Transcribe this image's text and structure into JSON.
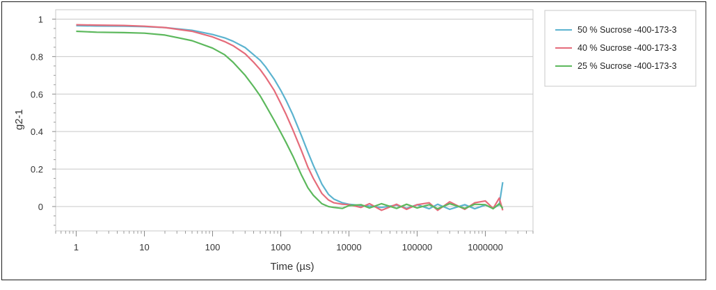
{
  "chart_data": {
    "type": "line",
    "xlabel": "Time (µs)",
    "ylabel": "g2-1",
    "x_scale": "log",
    "xlim": [
      0.5,
      5000000
    ],
    "ylim": [
      -0.13,
      1.05
    ],
    "x_ticks": [
      "1",
      "10",
      "100",
      "1000",
      "10000",
      "100000",
      "1000000"
    ],
    "y_ticks": [
      "0",
      "0.2",
      "0.4",
      "0.6",
      "0.8",
      "1"
    ],
    "grid": "horizontal",
    "legend_position": "right",
    "series": [
      {
        "name": "50 % Sucrose -400-173-3",
        "color": "#5bb3cf",
        "x": [
          1,
          2,
          5,
          10,
          20,
          50,
          100,
          150,
          200,
          300,
          400,
          500,
          600,
          800,
          1000,
          1200,
          1500,
          2000,
          2500,
          3000,
          4000,
          5000,
          6000,
          8000,
          10000,
          15000,
          20000,
          30000,
          50000,
          70000,
          100000,
          150000,
          200000,
          300000,
          500000,
          700000,
          1000000,
          1300000,
          1600000,
          1800000
        ],
        "y": [
          0.965,
          0.963,
          0.962,
          0.96,
          0.955,
          0.94,
          0.918,
          0.9,
          0.882,
          0.848,
          0.81,
          0.78,
          0.745,
          0.68,
          0.62,
          0.565,
          0.49,
          0.38,
          0.29,
          0.22,
          0.12,
          0.065,
          0.04,
          0.02,
          0.012,
          0.005,
          0.002,
          -0.005,
          0.008,
          -0.01,
          0.01,
          -0.012,
          0.012,
          -0.015,
          0.01,
          -0.012,
          0.008,
          -0.01,
          0.01,
          0.13
        ]
      },
      {
        "name": "40 % Sucrose -400-173-3",
        "color": "#e56b7a",
        "x": [
          1,
          2,
          5,
          10,
          20,
          50,
          100,
          150,
          200,
          300,
          400,
          500,
          600,
          800,
          1000,
          1200,
          1500,
          2000,
          2500,
          3000,
          4000,
          5000,
          6000,
          8000,
          10000,
          15000,
          20000,
          30000,
          50000,
          70000,
          100000,
          150000,
          200000,
          300000,
          500000,
          700000,
          1000000,
          1300000,
          1600000,
          1800000
        ],
        "y": [
          0.97,
          0.968,
          0.966,
          0.962,
          0.955,
          0.935,
          0.905,
          0.88,
          0.858,
          0.815,
          0.77,
          0.73,
          0.69,
          0.62,
          0.55,
          0.49,
          0.41,
          0.3,
          0.21,
          0.15,
          0.07,
          0.035,
          0.02,
          0.012,
          0.01,
          -0.005,
          0.015,
          -0.02,
          0.012,
          -0.015,
          0.01,
          0.02,
          -0.02,
          0.025,
          -0.015,
          0.02,
          0.03,
          -0.01,
          0.045,
          -0.02
        ]
      },
      {
        "name": "25 % Sucrose -400-173-3",
        "color": "#5cb85c",
        "x": [
          1,
          2,
          5,
          10,
          20,
          50,
          100,
          150,
          200,
          300,
          400,
          500,
          600,
          800,
          1000,
          1200,
          1500,
          2000,
          2500,
          3000,
          4000,
          5000,
          6000,
          8000,
          10000,
          15000,
          20000,
          30000,
          50000,
          70000,
          100000,
          150000,
          200000,
          300000,
          500000,
          700000,
          1000000,
          1300000,
          1600000,
          1800000
        ],
        "y": [
          0.935,
          0.93,
          0.928,
          0.925,
          0.915,
          0.885,
          0.845,
          0.81,
          0.77,
          0.7,
          0.64,
          0.59,
          0.54,
          0.46,
          0.395,
          0.34,
          0.27,
          0.17,
          0.1,
          0.06,
          0.015,
          0.0,
          -0.005,
          -0.01,
          0.005,
          0.01,
          -0.008,
          0.015,
          -0.01,
          0.012,
          -0.008,
          0.01,
          -0.012,
          0.015,
          -0.01,
          0.012,
          0.01,
          -0.012,
          0.015,
          -0.01
        ]
      }
    ]
  }
}
